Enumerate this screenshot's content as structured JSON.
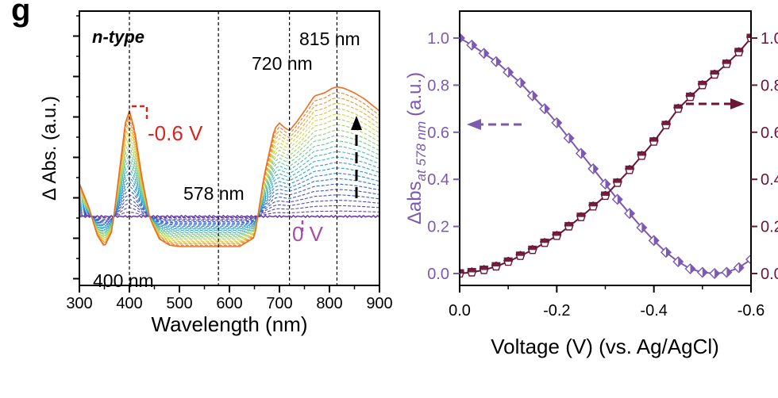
{
  "panel_label": "g",
  "colors": {
    "spectra_start": "#6a3fa0",
    "spectra_end": "#f26b1d",
    "annotation_red": "#d7261e",
    "annotation_purple": "#a64ca6",
    "left_axis_purple": "#7b5ab0",
    "right_axis_maroon": "#6b1537",
    "axis_black": "#000000"
  },
  "chart_data": [
    {
      "type": "line",
      "title": "n-type",
      "xlabel": "Wavelength (nm)",
      "ylabel": "Δ Abs. (a.u.)",
      "xlim": [
        300,
        900
      ],
      "xticks": [
        "300",
        "400",
        "500",
        "600",
        "700",
        "800",
        "900"
      ],
      "yticks_labeled": false,
      "grid": false,
      "series_count": 25,
      "series_order": "0 V (bottom, violet) to -0.6 V (top, orange)",
      "reference_lines_nm": [
        400,
        578,
        720,
        815
      ],
      "annotations": [
        "815 nm",
        "720 nm",
        "578 nm",
        "400 nm",
        "-0.6 V",
        "0 V"
      ],
      "envelope_top": {
        "x": [
          300,
          320,
          335,
          350,
          365,
          380,
          392,
          400,
          410,
          425,
          440,
          450,
          460,
          480,
          500,
          540,
          578,
          620,
          650,
          670,
          690,
          700,
          710,
          720,
          735,
          750,
          770,
          790,
          805,
          815,
          830,
          850,
          870,
          885,
          900
        ],
        "y": [
          0.22,
          0.05,
          -0.12,
          -0.2,
          -0.1,
          0.3,
          0.62,
          0.7,
          0.58,
          0.26,
          0.0,
          -0.08,
          -0.15,
          -0.19,
          -0.2,
          -0.2,
          -0.2,
          -0.2,
          -0.14,
          0.28,
          0.58,
          0.62,
          0.59,
          0.57,
          0.63,
          0.7,
          0.8,
          0.82,
          0.85,
          0.86,
          0.85,
          0.82,
          0.78,
          0.74,
          0.7
        ]
      }
    },
    {
      "type": "line",
      "xlabel": "Voltage (V) (vs. Ag/AgCl)",
      "ylabel_left": "Δabs at 578 nm (a.u.)",
      "ylabel_left_main": "Δabs",
      "ylabel_left_sub": "at 578 nm",
      "ylabel_left_unit": "(a.u.)",
      "xlim": [
        0.0,
        -0.6
      ],
      "ylim": [
        -0.05,
        1.05
      ],
      "xticks": [
        "0.0",
        "-0.2",
        "-0.4",
        "-0.6"
      ],
      "yticks_left": [
        "0.0",
        "0.2",
        "0.4",
        "0.6",
        "0.8",
        "1.0"
      ],
      "yticks_right": [
        "0.0",
        "0.2",
        "0.4",
        "0.6",
        "0.8",
        "1.0"
      ],
      "grid": false,
      "x": [
        0.0,
        -0.025,
        -0.05,
        -0.075,
        -0.1,
        -0.125,
        -0.15,
        -0.175,
        -0.2,
        -0.225,
        -0.25,
        -0.275,
        -0.3,
        -0.325,
        -0.35,
        -0.375,
        -0.4,
        -0.425,
        -0.45,
        -0.475,
        -0.5,
        -0.525,
        -0.55,
        -0.575,
        -0.6
      ],
      "series": [
        {
          "axis": "left",
          "marker": "diamond",
          "values": [
            1.0,
            0.97,
            0.935,
            0.9,
            0.855,
            0.81,
            0.755,
            0.7,
            0.64,
            0.575,
            0.51,
            0.445,
            0.38,
            0.315,
            0.255,
            0.195,
            0.14,
            0.09,
            0.05,
            0.02,
            0.005,
            0.0,
            0.005,
            0.025,
            0.06
          ]
        },
        {
          "axis": "right",
          "marker": "pentagon",
          "values": [
            0.0,
            0.005,
            0.015,
            0.03,
            0.05,
            0.075,
            0.1,
            0.13,
            0.16,
            0.2,
            0.24,
            0.285,
            0.33,
            0.385,
            0.44,
            0.5,
            0.56,
            0.63,
            0.7,
            0.75,
            0.8,
            0.845,
            0.89,
            0.94,
            1.0
          ]
        }
      ]
    }
  ]
}
